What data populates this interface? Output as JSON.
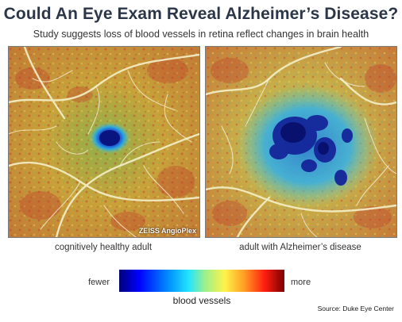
{
  "header": {
    "title": "Could An Eye Exam Reveal Alzheimer’s Disease?",
    "subtitle": "Study suggests loss of blood vessels in retina reflect changes in brain health"
  },
  "panels": [
    {
      "caption": "cognitively healthy adult",
      "watermark": "ZEISS AngioPlex"
    },
    {
      "caption": "adult with Alzheimer’s disease"
    }
  ],
  "legend": {
    "low_label": "fewer",
    "high_label": "more",
    "title": "blood vessels",
    "colors": [
      "#00007a",
      "#0000ff",
      "#0090ff",
      "#22e4ff",
      "#9ef08a",
      "#fff24a",
      "#ff9a22",
      "#ff1e10",
      "#7a0000"
    ]
  },
  "footer": {
    "source": "Source: Duke Eye Center"
  }
}
